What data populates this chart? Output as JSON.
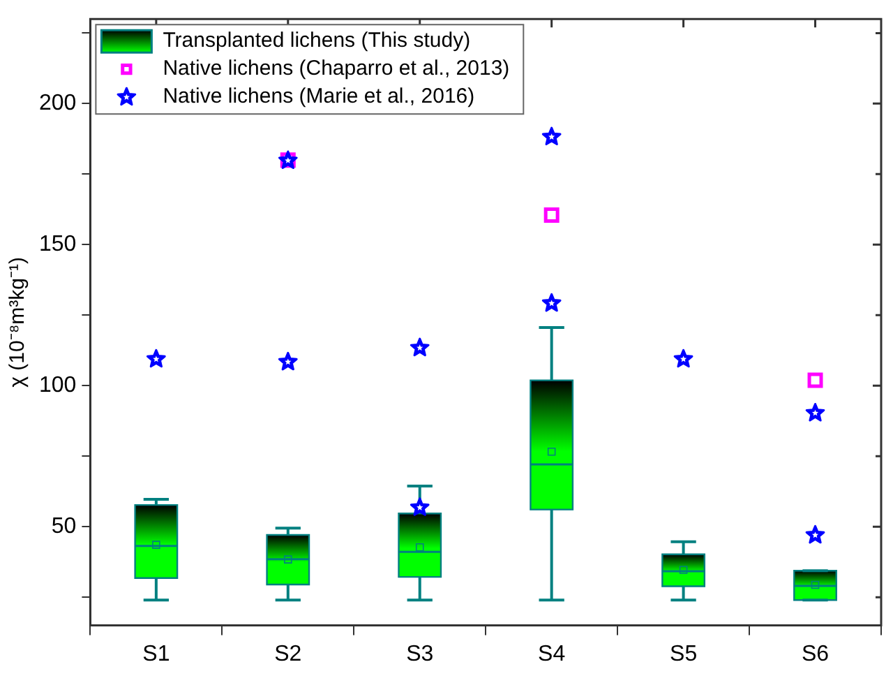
{
  "chart_data": {
    "type": "box",
    "ylabel": "χ (10⁻⁸m³kg⁻¹)",
    "categories": [
      "S1",
      "S2",
      "S3",
      "S4",
      "S5",
      "S6"
    ],
    "ylim": [
      15,
      230
    ],
    "yticks": [
      {
        "value": 25,
        "label": null
      },
      50,
      {
        "value": 75,
        "label": null
      },
      100,
      {
        "value": 125,
        "label": null
      },
      150,
      {
        "value": 175,
        "label": null
      },
      200,
      {
        "value": 225,
        "label": null
      }
    ],
    "legend": "top left",
    "grid": false,
    "series": [
      {
        "name": "Transplanted lichens (This study)",
        "type": "box",
        "color": "#00ff00",
        "boxes": [
          {
            "low": 24,
            "q1": 31.8,
            "median": 43.2,
            "q3": 57.7,
            "high": 59.7,
            "mean": 43.6
          },
          {
            "low": 24,
            "q1": 29.5,
            "median": 38.5,
            "q3": 47.1,
            "high": 49.5,
            "mean": 38.4
          },
          {
            "low": 24,
            "q1": 32.2,
            "median": 41.1,
            "q3": 54.7,
            "high": 64.4,
            "mean": 42.7
          },
          {
            "low": 24,
            "q1": 56.1,
            "median": 72.1,
            "q3": 101.9,
            "high": 120.6,
            "mean": 76.6
          },
          {
            "low": 24,
            "q1": 28.9,
            "median": 34.2,
            "q3": 40.2,
            "high": 44.7,
            "mean": 34.7
          },
          {
            "low": 24,
            "q1": 24,
            "median": 29,
            "q3": 34.4,
            "high": 34.4,
            "mean": 29.4
          }
        ]
      },
      {
        "name": "Native lichens (Chaparro et al., 2013)",
        "type": "scatter",
        "marker": "square",
        "color": "#ff00ff",
        "x": [
          "S2",
          "S4",
          "S6"
        ],
        "values": [
          180,
          160.5,
          101.9
        ]
      },
      {
        "name": "Native lichens (Marie et al., 2016)",
        "type": "scatter",
        "marker": "star",
        "color": "#0000ff",
        "x": [
          "S1",
          "S2",
          "S2",
          "S3",
          "S3",
          "S4",
          "S4",
          "S5",
          "S6",
          "S6"
        ],
        "values": [
          109.4,
          108.4,
          179.8,
          113.4,
          56.8,
          188.2,
          129.2,
          109.4,
          90.3,
          47
        ]
      }
    ]
  }
}
